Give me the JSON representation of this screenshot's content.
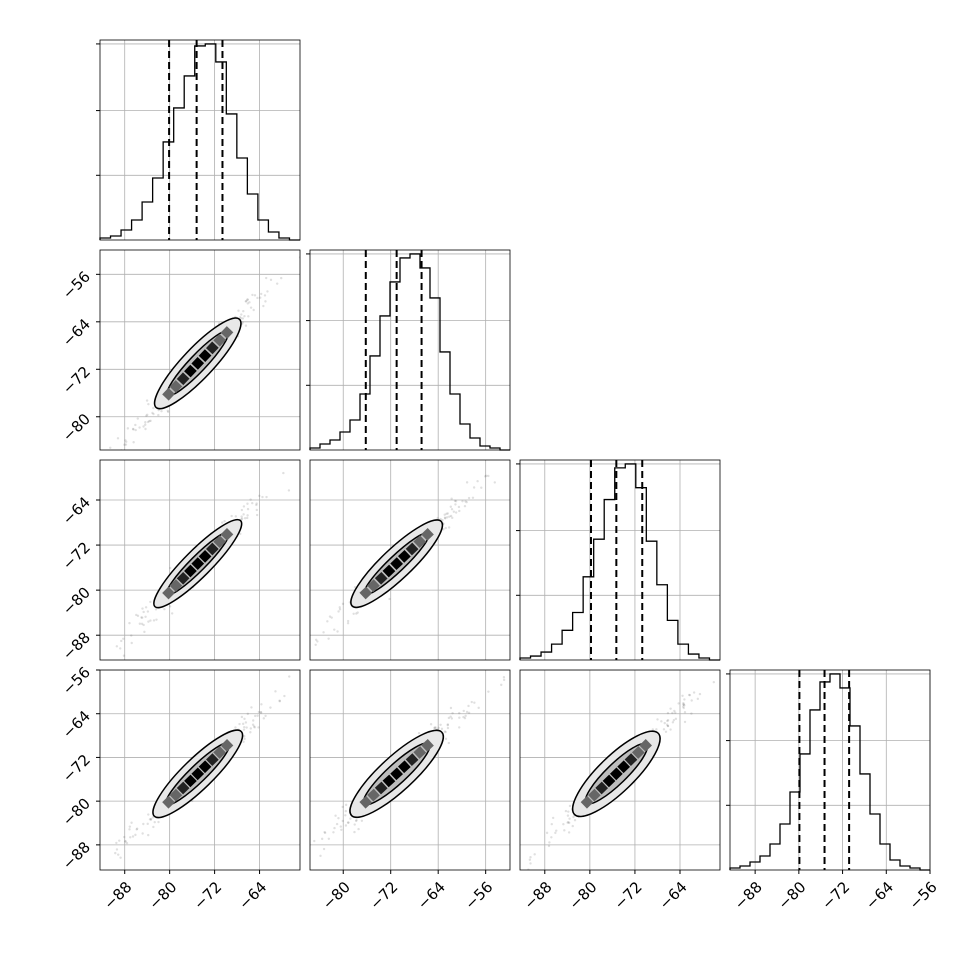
{
  "chart_data": {
    "type": "corner",
    "n_params": 4,
    "grid": true,
    "axes": [
      {
        "param": 0,
        "range": [
          -92.4,
          -56.8
        ],
        "ticks": [
          -88,
          -80,
          -72,
          -64
        ],
        "tick_labels": [
          "−88",
          "−80",
          "−72",
          "−64"
        ]
      },
      {
        "param": 1,
        "range": [
          -85.6,
          -51.9
        ],
        "ticks": [
          -80,
          -72,
          -64,
          -56
        ],
        "tick_labels": [
          "−80",
          "−72",
          "−64",
          "−56"
        ]
      },
      {
        "param": 2,
        "range": [
          -92.4,
          -56.9
        ],
        "ticks": [
          -88,
          -80,
          -72,
          -64
        ],
        "tick_labels": [
          "−88",
          "−80",
          "−72",
          "−64"
        ]
      },
      {
        "param": 3,
        "range": [
          -92.6,
          -56.0
        ],
        "ticks": [
          -88,
          -80,
          -72,
          -64,
          -56
        ],
        "tick_labels": [
          "−88",
          "−80",
          "−72",
          "−64",
          "−56"
        ]
      }
    ],
    "row_tick_values": {
      "1": [
        -80,
        -72,
        -64,
        -56
      ],
      "2": [
        -88,
        -80,
        -72,
        -64
      ],
      "3": [
        -88,
        -80,
        -72,
        -64,
        -56
      ]
    },
    "histograms": [
      {
        "param": 0,
        "counts": [
          1,
          2,
          5,
          10,
          19,
          31,
          49,
          66,
          82,
          97,
          98,
          89,
          63,
          41,
          23,
          10,
          4,
          1,
          0
        ],
        "quantiles": [
          -80.1,
          -75.2,
          -70.6
        ]
      },
      {
        "param": 1,
        "counts": [
          1,
          3,
          5,
          9,
          15,
          28,
          47,
          67,
          84,
          96,
          98,
          91,
          76,
          49,
          28,
          13,
          6,
          2,
          1,
          0
        ],
        "quantiles": [
          -76.2,
          -71.0,
          -66.8
        ]
      },
      {
        "param": 2,
        "counts": [
          1,
          2,
          4,
          8,
          15,
          24,
          42,
          61,
          81,
          97,
          99,
          87,
          60,
          38,
          20,
          8,
          3,
          1,
          0
        ],
        "quantiles": [
          -79.8,
          -75.3,
          -70.7
        ]
      },
      {
        "param": 3,
        "counts": [
          1,
          2,
          4,
          7,
          13,
          23,
          39,
          58,
          80,
          94,
          98,
          91,
          72,
          48,
          28,
          13,
          5,
          2,
          1,
          0
        ],
        "quantiles": [
          -79.9,
          -75.3,
          -70.8
        ]
      }
    ],
    "contours": [
      {
        "row": 1,
        "col": 0,
        "center": [
          -75.0,
          -71.0
        ],
        "inner_halfwidth": 1.0,
        "outer_halfwidth": 1.7,
        "length": 12.0
      },
      {
        "row": 2,
        "col": 0,
        "center": [
          -75.0,
          -75.3
        ],
        "inner_halfwidth": 0.9,
        "outer_halfwidth": 1.5,
        "length": 12.0
      },
      {
        "row": 2,
        "col": 1,
        "center": [
          -71.0,
          -75.3
        ],
        "inner_halfwidth": 0.9,
        "outer_halfwidth": 1.6,
        "length": 11.5
      },
      {
        "row": 3,
        "col": 0,
        "center": [
          -75.0,
          -75.0
        ],
        "inner_halfwidth": 1.0,
        "outer_halfwidth": 1.7,
        "length": 12.0
      },
      {
        "row": 3,
        "col": 1,
        "center": [
          -71.0,
          -75.0
        ],
        "inner_halfwidth": 1.1,
        "outer_halfwidth": 1.8,
        "length": 11.5
      },
      {
        "row": 3,
        "col": 2,
        "center": [
          -75.3,
          -75.0
        ],
        "inner_halfwidth": 1.2,
        "outer_halfwidth": 2.0,
        "length": 11.5
      }
    ],
    "colors": {
      "line": "#000000",
      "grid": "#b0b0b0",
      "points": "#555555",
      "fill_outer": "#e8e8e8",
      "fill_inner": "#bdbdbd"
    }
  }
}
